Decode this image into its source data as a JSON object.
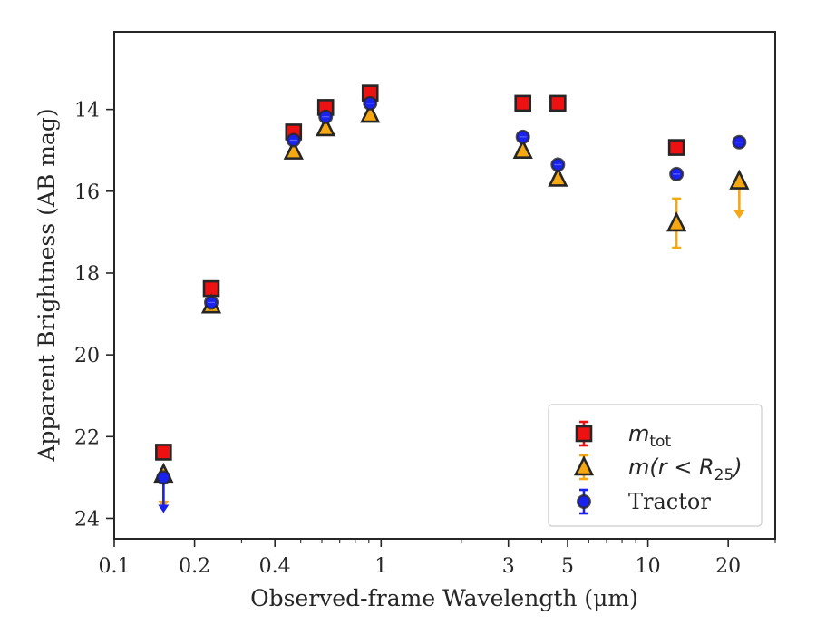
{
  "chart_data": {
    "type": "scatter",
    "title": "",
    "xlabel": "Observed-frame Wavelength (μm)",
    "ylabel": "Apparent Brightness (AB mag)",
    "xscale": "log",
    "xlim": [
      0.1,
      30
    ],
    "ylim": [
      24.5,
      12.1
    ],
    "y_inverted": true,
    "x_ticks": [
      {
        "value": 0.1,
        "label": "0.1"
      },
      {
        "value": 0.2,
        "label": "0.2"
      },
      {
        "value": 0.4,
        "label": "0.4"
      },
      {
        "value": 1,
        "label": "1"
      },
      {
        "value": 3,
        "label": "3"
      },
      {
        "value": 5,
        "label": "5"
      },
      {
        "value": 10,
        "label": "10"
      },
      {
        "value": 20,
        "label": "20"
      }
    ],
    "y_ticks": [
      {
        "value": 14,
        "label": "14"
      },
      {
        "value": 16,
        "label": "16"
      },
      {
        "value": 18,
        "label": "18"
      },
      {
        "value": 20,
        "label": "20"
      },
      {
        "value": 22,
        "label": "22"
      },
      {
        "value": 24,
        "label": "24"
      }
    ],
    "grid": false,
    "legend_position": "lower-right",
    "series": [
      {
        "name": "m_tot",
        "marker": "square",
        "color": "#ee1111",
        "edge": "#262626",
        "points": [
          {
            "x": 0.153,
            "y": 22.38
          },
          {
            "x": 0.231,
            "y": 18.38
          },
          {
            "x": 0.47,
            "y": 14.55
          },
          {
            "x": 0.62,
            "y": 13.95
          },
          {
            "x": 0.91,
            "y": 13.6
          },
          {
            "x": 3.4,
            "y": 13.85
          },
          {
            "x": 4.6,
            "y": 13.85
          },
          {
            "x": 12.8,
            "y": 14.93
          }
        ]
      },
      {
        "name": "m(r < R25)",
        "marker": "triangle",
        "color": "#f5a811",
        "edge": "#262626",
        "points": [
          {
            "x": 0.153,
            "y": 22.92,
            "upper_limit": true,
            "limit_to": 23.7
          },
          {
            "x": 0.231,
            "y": 18.78
          },
          {
            "x": 0.47,
            "y": 15.02
          },
          {
            "x": 0.62,
            "y": 14.45
          },
          {
            "x": 0.91,
            "y": 14.12
          },
          {
            "x": 3.4,
            "y": 15.0
          },
          {
            "x": 4.6,
            "y": 15.68
          },
          {
            "x": 12.8,
            "y": 16.78,
            "yerr": 0.6
          },
          {
            "x": 22,
            "y": 15.75,
            "upper_limit": true,
            "limit_to": 16.6
          }
        ]
      },
      {
        "name": "Tractor",
        "marker": "circle",
        "color": "#1a22ee",
        "edge": "#262626",
        "points": [
          {
            "x": 0.153,
            "y": 23.0,
            "upper_limit": true,
            "limit_to": 23.8
          },
          {
            "x": 0.231,
            "y": 18.72
          },
          {
            "x": 0.47,
            "y": 14.75
          },
          {
            "x": 0.62,
            "y": 14.18
          },
          {
            "x": 0.91,
            "y": 13.85
          },
          {
            "x": 3.4,
            "y": 14.67
          },
          {
            "x": 4.6,
            "y": 15.35
          },
          {
            "x": 12.8,
            "y": 15.58
          },
          {
            "x": 22,
            "y": 14.8
          }
        ]
      }
    ]
  },
  "legend": {
    "items": [
      {
        "main": "m",
        "sub": "tot",
        "rest": ""
      },
      {
        "main": "m(r < R",
        "sub": "25",
        "rest": ")"
      },
      {
        "main": "Tractor",
        "sub": "",
        "rest": ""
      }
    ]
  }
}
